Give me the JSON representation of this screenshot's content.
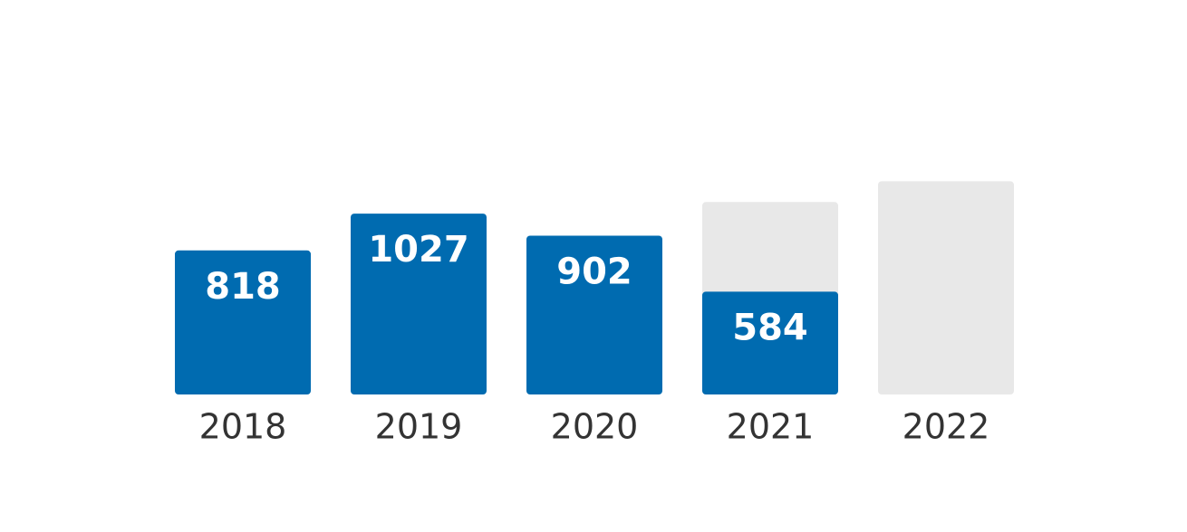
{
  "chart_data": {
    "type": "bar",
    "categories": [
      "2018",
      "2019",
      "2020",
      "2021",
      "2022"
    ],
    "series": [
      {
        "color": "#e8e8e8",
        "values": [
          null,
          null,
          null,
          1093,
          1211
        ]
      },
      {
        "color": "#006bb0",
        "values": [
          818,
          1027,
          902,
          584,
          null
        ]
      }
    ],
    "ylim": [
      0,
      1300
    ]
  }
}
